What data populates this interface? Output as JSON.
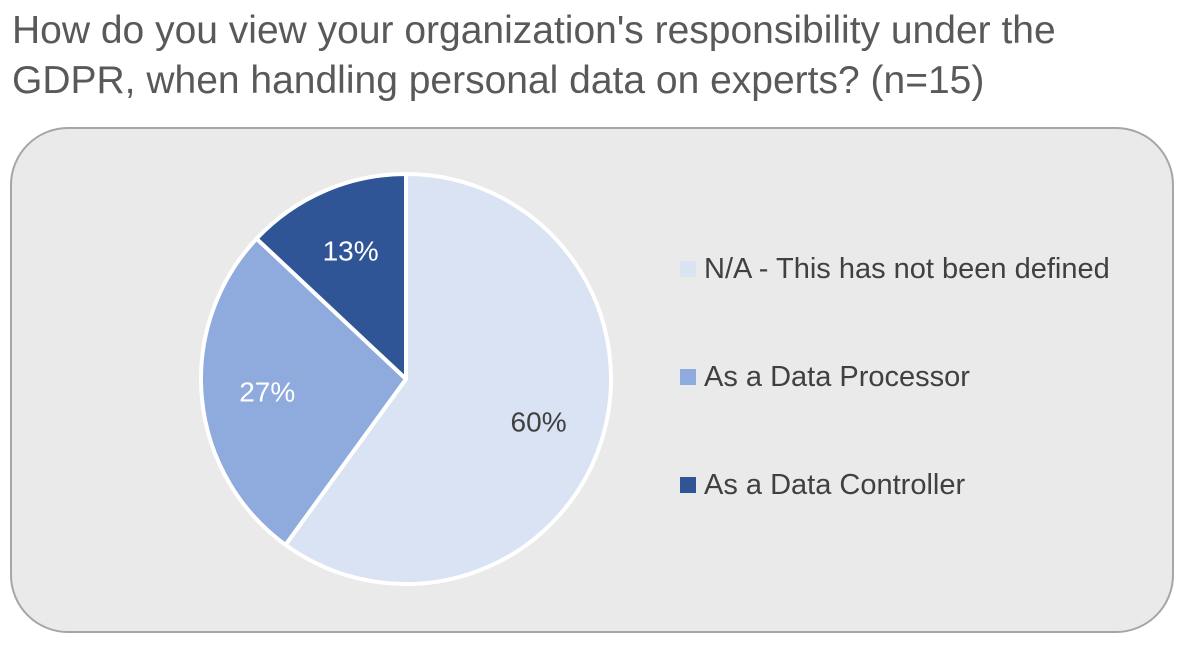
{
  "title": "How do you view your organization's responsibility under the GDPR, when handling personal data on experts? (n=15)",
  "chart_data": {
    "type": "pie",
    "slices": [
      {
        "label": "N/A - This has not been defined",
        "value": 60,
        "display": "60%",
        "color": "#dae3f3",
        "label_color": "#404040"
      },
      {
        "label": "As a Data Processor",
        "value": 27,
        "display": "27%",
        "color": "#8faadc",
        "label_color": "#ffffff"
      },
      {
        "label": "As a Data Controller",
        "value": 13,
        "display": "13%",
        "color": "#2f5597",
        "label_color": "#ffffff"
      }
    ],
    "start": "12 o'clock",
    "direction": "clockwise",
    "legend_position": "right"
  }
}
